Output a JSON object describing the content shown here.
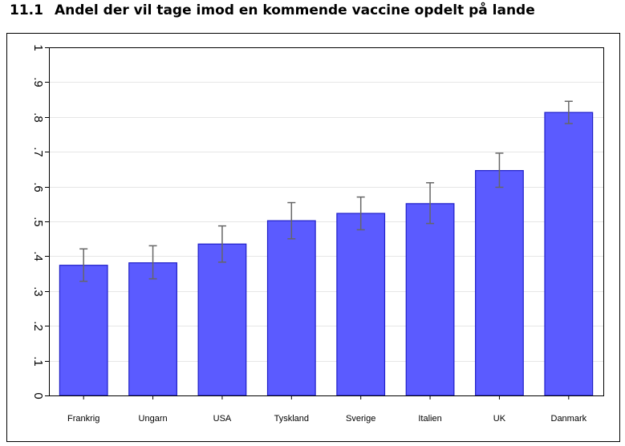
{
  "figure": {
    "number": "11.1",
    "title": "Andel der vil tage imod en kommende vaccine opdelt på lande"
  },
  "colors": {
    "bar_fill": "#5b5bff",
    "bar_stroke": "#2020c8",
    "error_bar": "#666666",
    "grid": "#e6e6e6",
    "frame": "#000000"
  },
  "chart_data": {
    "type": "bar",
    "title": "",
    "xlabel": "",
    "ylabel": "",
    "ylim": [
      0,
      1
    ],
    "yticks": [
      0,
      0.1,
      0.2,
      0.3,
      0.4,
      0.5,
      0.6,
      0.7,
      0.8,
      0.9,
      1
    ],
    "ytick_labels": [
      "0",
      ".1",
      ".2",
      ".3",
      ".4",
      ".5",
      ".6",
      ".7",
      ".8",
      ".9",
      "1"
    ],
    "grid": true,
    "categories": [
      "Frankrig",
      "Ungarn",
      "USA",
      "Tyskland",
      "Sverige",
      "Italien",
      "UK",
      "Danmark"
    ],
    "values": [
      0.374,
      0.381,
      0.435,
      0.502,
      0.523,
      0.551,
      0.646,
      0.813
    ],
    "error_low": [
      0.328,
      0.335,
      0.383,
      0.45,
      0.476,
      0.494,
      0.598,
      0.781
    ],
    "error_high": [
      0.421,
      0.43,
      0.487,
      0.554,
      0.57,
      0.611,
      0.696,
      0.845
    ]
  }
}
